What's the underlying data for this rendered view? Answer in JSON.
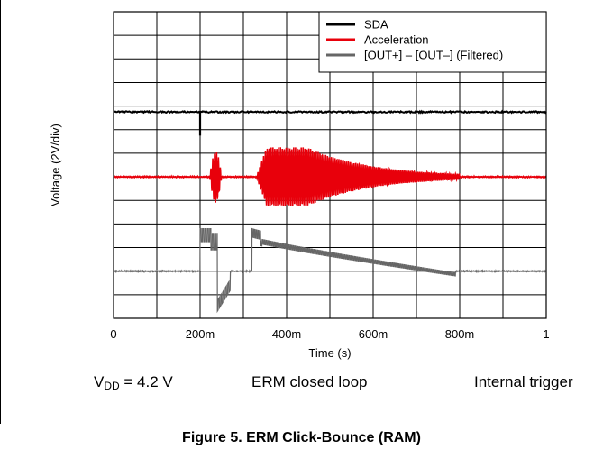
{
  "chart_data": {
    "type": "line",
    "xlabel": "Time (s)",
    "ylabel": "Voltage (2V/div)",
    "xlim": [
      0,
      1
    ],
    "x_ticks": [
      {
        "value": 0,
        "label": "0"
      },
      {
        "value": 0.2,
        "label": "200m"
      },
      {
        "value": 0.4,
        "label": "400m"
      },
      {
        "value": 0.6,
        "label": "600m"
      },
      {
        "value": 0.8,
        "label": "800m"
      },
      {
        "value": 1,
        "label": "1"
      }
    ],
    "y_divisions": 13,
    "grid": true,
    "legend_position": "top-right",
    "series": [
      {
        "name": "SDA",
        "color": "#000000",
        "baseline_div": 8.75,
        "events": [
          {
            "t": 0.2,
            "type": "pulse",
            "depth_div": 1.0,
            "width": 0.003
          }
        ]
      },
      {
        "name": "Acceleration",
        "color": "#e8000b",
        "baseline_div": 6.0,
        "bursts": [
          {
            "t_start": 0.222,
            "t_end": 0.25,
            "peak_div": 1.1
          },
          {
            "t_start": 0.33,
            "t_end": 0.8,
            "peak_div": 1.25
          }
        ]
      },
      {
        "name": "[OUT+] – [OUT–] (Filtered)",
        "color": "#666666",
        "baseline_div": 2.0,
        "segments": [
          {
            "t_start": 0.2,
            "t_end": 0.24,
            "level_div": 1.8
          },
          {
            "t_start": 0.24,
            "t_end": 0.27,
            "level_div": -1.7
          },
          {
            "t_start": 0.32,
            "t_end": 0.79,
            "level_start_div": 1.8,
            "level_end_div": 0.1
          }
        ]
      }
    ]
  },
  "conditions": {
    "vdd_prefix": "V",
    "vdd_sub": "DD",
    "vdd_value": " = 4.2 V",
    "mode": "ERM closed loop",
    "trigger": "Internal trigger"
  },
  "figure_title": "Figure 5. ERM Click-Bounce (RAM)"
}
